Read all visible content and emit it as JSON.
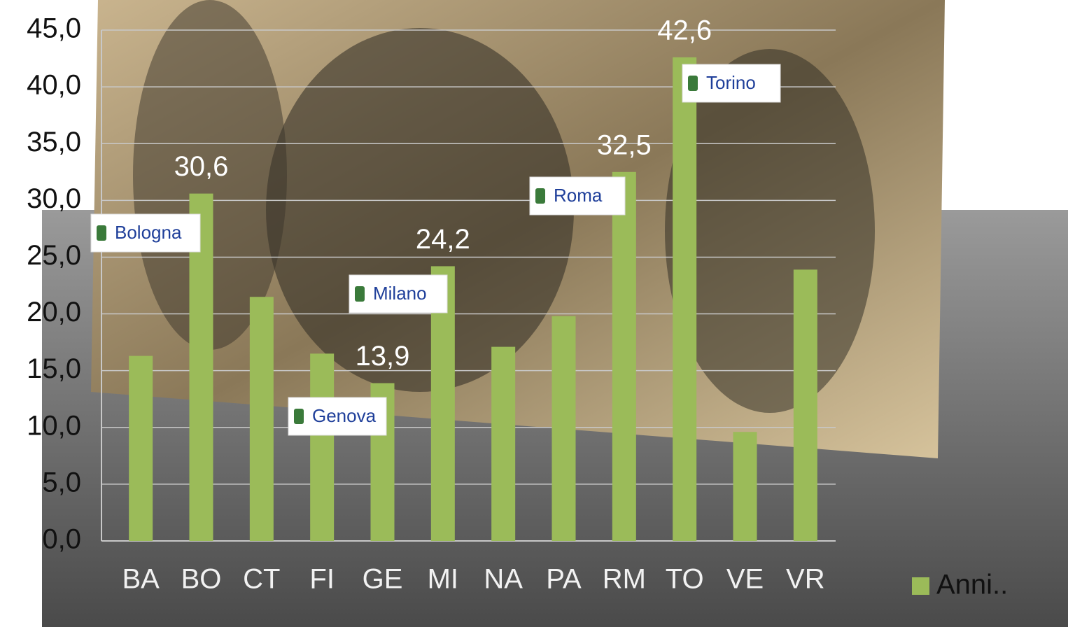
{
  "chart_data": {
    "type": "bar",
    "categories": [
      "BA",
      "BO",
      "CT",
      "FI",
      "GE",
      "MI",
      "NA",
      "PA",
      "RM",
      "TO",
      "VE",
      "VR"
    ],
    "series": [
      {
        "name": "Anni..",
        "color": "#9bbb59",
        "values": [
          16.3,
          30.6,
          21.5,
          16.5,
          13.9,
          24.2,
          17.1,
          19.8,
          32.5,
          42.6,
          9.6,
          23.9
        ],
        "value_labels": [
          null,
          "30,6",
          null,
          null,
          "13,9",
          "24,2",
          null,
          null,
          "32,5",
          "42,6",
          null,
          null
        ]
      }
    ],
    "ylim": [
      0,
      45
    ],
    "yticks": [
      {
        "value": 0,
        "label": "0,0"
      },
      {
        "value": 5,
        "label": "5,0"
      },
      {
        "value": 10,
        "label": "10,0"
      },
      {
        "value": 15,
        "label": "15,0"
      },
      {
        "value": 20,
        "label": "20,0"
      },
      {
        "value": 25,
        "label": "25,0"
      },
      {
        "value": 30,
        "label": "30,0"
      },
      {
        "value": 35,
        "label": "35,0"
      },
      {
        "value": 40,
        "label": "40,0"
      },
      {
        "value": 45,
        "label": "45,0"
      }
    ],
    "grid": true,
    "annotations": [
      "Bologna",
      "Genova",
      "Milano",
      "Roma",
      "Torino"
    ],
    "legend": "bottom-right"
  }
}
